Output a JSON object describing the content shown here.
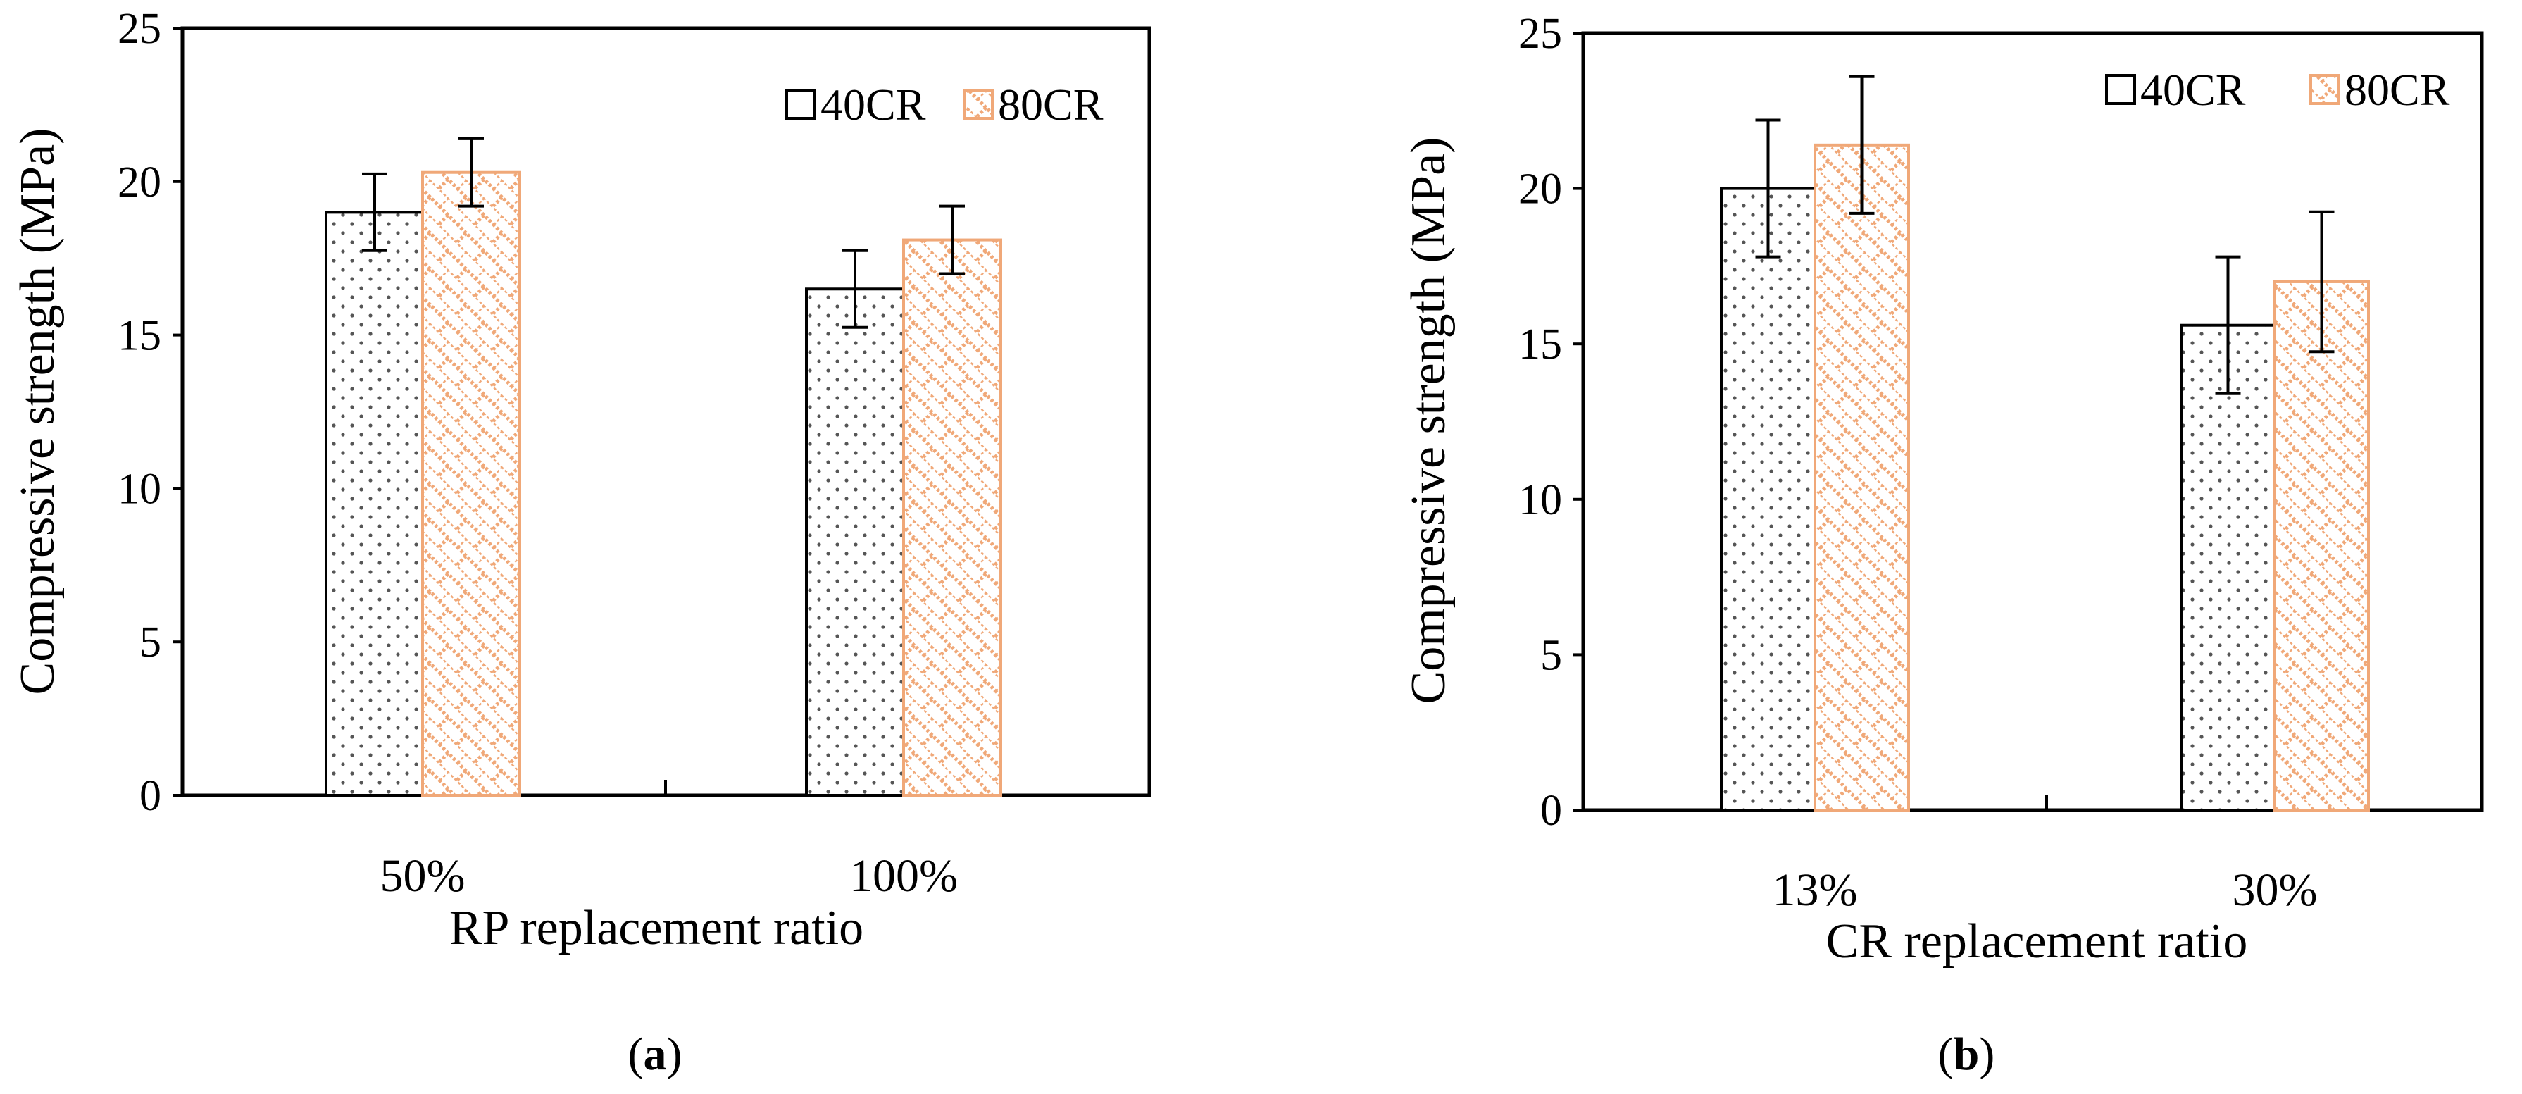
{
  "chart_data": [
    {
      "type": "bar",
      "panel": "a",
      "panel_label": "a",
      "title": "",
      "xlabel": "RP  replacement ratio",
      "ylabel": "Compressive strength (MPa)",
      "ylim": [
        0,
        25
      ],
      "yticks": [
        0,
        5,
        10,
        15,
        20,
        25
      ],
      "ytick_labels": [
        "0",
        "5",
        "10",
        "15",
        "20",
        "25"
      ],
      "categories": [
        "50%",
        "100%"
      ],
      "series": [
        {
          "name": "40CR",
          "values": [
            19.0,
            16.5
          ],
          "errors": [
            1.25,
            1.25
          ],
          "color": "#000000",
          "pattern": "dots"
        },
        {
          "name": "80CR",
          "values": [
            20.3,
            18.1
          ],
          "errors": [
            1.1,
            1.1
          ],
          "color": "#f0a878",
          "pattern": "brick"
        }
      ],
      "legend": "top-right",
      "grid": false
    },
    {
      "type": "bar",
      "panel": "b",
      "panel_label": "b",
      "title": "",
      "xlabel": "CR  replacement ratio",
      "ylabel": "Compressive strength (MPa)",
      "ylim": [
        0,
        25
      ],
      "yticks": [
        0,
        5,
        10,
        15,
        20,
        25
      ],
      "ytick_labels": [
        "0",
        "5",
        "10",
        "15",
        "20",
        "25"
      ],
      "categories": [
        "13%",
        "30%"
      ],
      "series": [
        {
          "name": "40CR",
          "values": [
            20.0,
            15.6
          ],
          "errors": [
            2.2,
            2.2
          ],
          "color": "#000000",
          "pattern": "dots"
        },
        {
          "name": "80CR",
          "values": [
            21.4,
            17.0
          ],
          "errors": [
            2.2,
            2.25
          ],
          "color": "#f0a878",
          "pattern": "brick"
        }
      ],
      "legend": "top-right",
      "grid": false
    }
  ]
}
